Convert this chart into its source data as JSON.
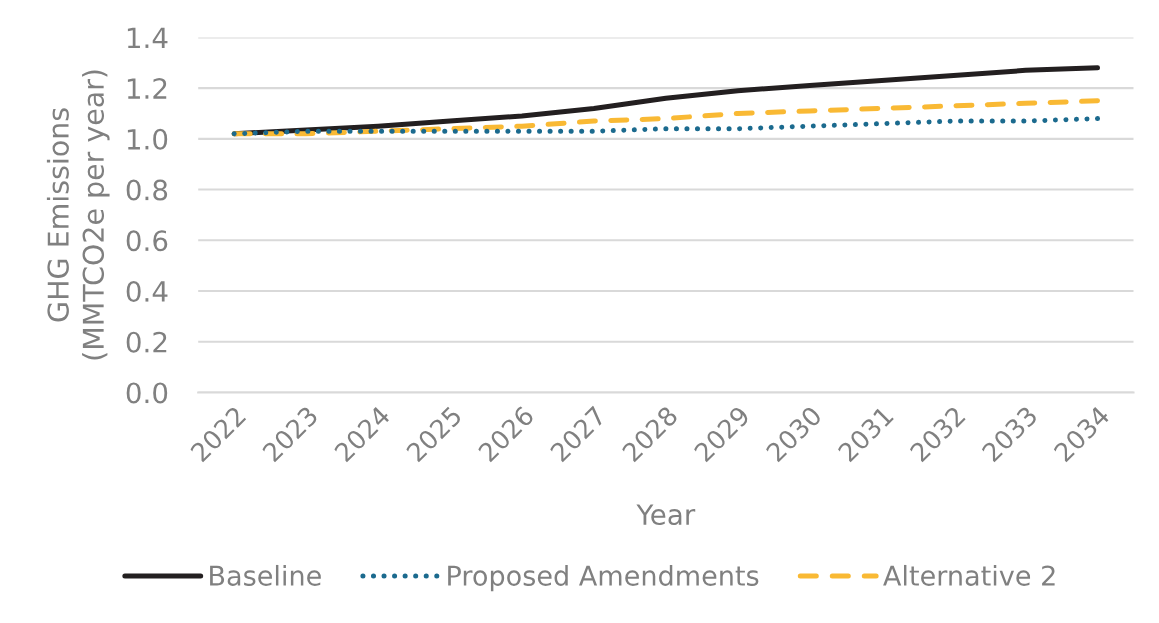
{
  "chart_data": {
    "type": "line",
    "xlabel": "Year",
    "ylabel": "GHG Emissions\n(MMTCO2e per year)",
    "categories": [
      "2022",
      "2023",
      "2024",
      "2025",
      "2026",
      "2027",
      "2028",
      "2029",
      "2030",
      "2031",
      "2032",
      "2033",
      "2034"
    ],
    "series": [
      {
        "name": "Baseline",
        "color": "#231f20",
        "line_style": "solid",
        "values": [
          1.02,
          1.035,
          1.05,
          1.07,
          1.09,
          1.12,
          1.16,
          1.19,
          1.21,
          1.23,
          1.25,
          1.27,
          1.28
        ]
      },
      {
        "name": "Proposed Amendments",
        "color": "#1b6a8e",
        "line_style": "dotted",
        "values": [
          1.02,
          1.03,
          1.03,
          1.03,
          1.03,
          1.03,
          1.04,
          1.04,
          1.05,
          1.06,
          1.07,
          1.07,
          1.08
        ]
      },
      {
        "name": "Alternative 2",
        "color": "#f9b934",
        "line_style": "dashed",
        "values": [
          1.02,
          1.02,
          1.03,
          1.04,
          1.05,
          1.07,
          1.08,
          1.1,
          1.11,
          1.12,
          1.13,
          1.14,
          1.15
        ]
      }
    ],
    "ylim": [
      0,
      1.4
    ],
    "yticks": [
      {
        "value": 0,
        "label": "0.0"
      },
      0.2,
      0.4,
      0.6,
      0.8,
      {
        "value": 1,
        "label": "1.0"
      },
      1.2,
      1.4
    ],
    "grid": "y",
    "legend": "bottom"
  }
}
